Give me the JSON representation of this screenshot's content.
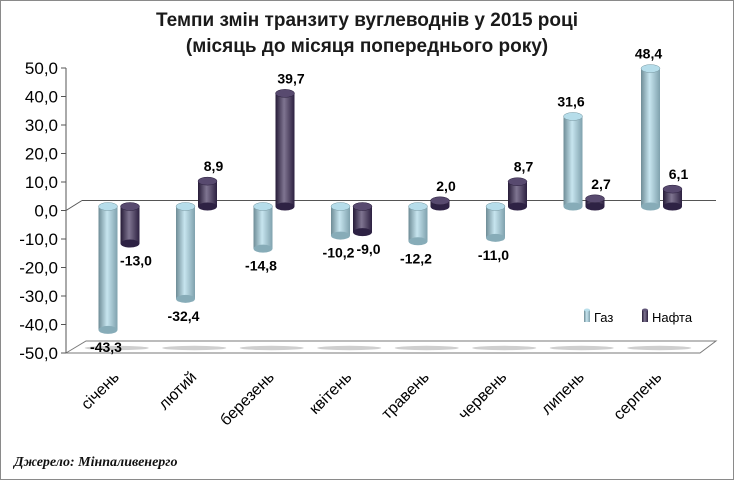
{
  "title_line1": "Темпи змін транзиту вуглеводнів у 2015 році",
  "title_line2": "(місяць до місяця попереднього року)",
  "source": "Джерело:  Мінпаливенерго",
  "colors": {
    "gas": "#a9d7e6",
    "oil": "#3a2a55"
  },
  "chart_data": {
    "type": "bar",
    "title": "Темпи змін транзиту вуглеводнів у 2015 році (місяць до місяця попереднього року)",
    "xlabel": "",
    "ylabel": "",
    "ylim": [
      -50,
      50
    ],
    "yticks": [
      50,
      40,
      30,
      20,
      10,
      0,
      -10,
      -20,
      -30,
      -40,
      -50
    ],
    "ytick_labels": [
      "50,0",
      "40,0",
      "30,0",
      "20,0",
      "10,0",
      "0,0",
      "-10,0",
      "-20,0",
      "-30,0",
      "-40,0",
      "-50,0"
    ],
    "categories": [
      "січень",
      "лютий",
      "березень",
      "квітень",
      "травень",
      "червень",
      "липень",
      "серпень"
    ],
    "series": [
      {
        "name": "Газ",
        "values": [
          -43.3,
          -32.4,
          -14.8,
          -10.2,
          -12.2,
          -11.0,
          31.6,
          48.4
        ],
        "labels": [
          "-43,3",
          "-32,4",
          "-14,8",
          "-10,2",
          "-12,2",
          "-11,0",
          "31,6",
          "48,4"
        ]
      },
      {
        "name": "Нафта",
        "values": [
          -13.0,
          8.9,
          39.7,
          -9.0,
          2.0,
          8.7,
          2.7,
          6.1
        ],
        "labels": [
          "-13,0",
          "8,9",
          "39,7",
          "-9,0",
          "2,0",
          "8,7",
          "2,7",
          "6,1"
        ]
      }
    ],
    "legend": "bottom-right",
    "grid": false
  }
}
